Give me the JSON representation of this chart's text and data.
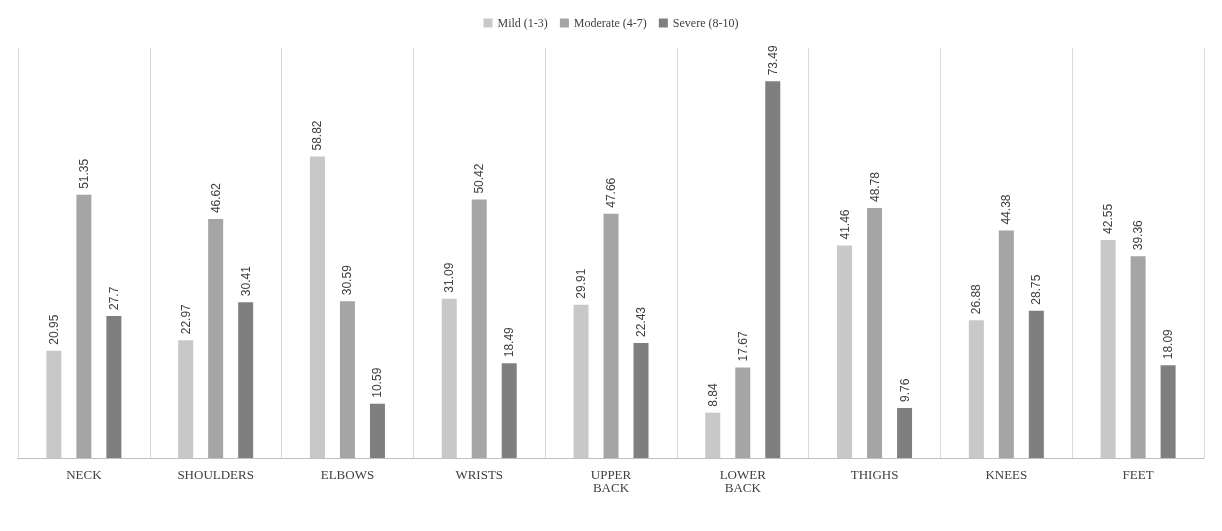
{
  "chart_data": {
    "type": "bar",
    "categories": [
      "NECK",
      "SHOULDERS",
      "ELBOWS",
      "WRISTS",
      "UPPER BACK",
      "LOWER BACK",
      "THIGHS",
      "KNEES",
      "FEET"
    ],
    "series": [
      {
        "name": "Mild (1-3)",
        "color": "#c8c8c8",
        "values": [
          20.95,
          22.97,
          58.82,
          31.09,
          29.91,
          8.84,
          41.46,
          26.88,
          42.55
        ]
      },
      {
        "name": "Moderate (4-7)",
        "color": "#a5a5a5",
        "values": [
          51.35,
          46.62,
          30.59,
          50.42,
          47.66,
          17.67,
          48.78,
          44.38,
          39.36
        ]
      },
      {
        "name": "Severe (8-10)",
        "color": "#7f7f7f",
        "values": [
          27.7,
          30.41,
          10.59,
          18.49,
          22.43,
          73.49,
          9.76,
          28.75,
          18.09
        ]
      }
    ],
    "data_labels": true,
    "grid": "x",
    "legend": "top"
  }
}
